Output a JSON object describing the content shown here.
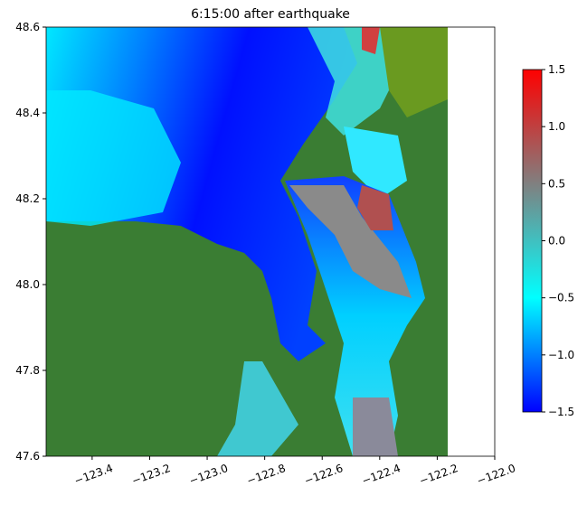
{
  "chart_data": {
    "type": "map",
    "title": "6:15:00 after earthquake",
    "xlim": [
      -123.56,
      -122.0
    ],
    "ylim": [
      47.6,
      48.6
    ],
    "xticks": [
      {
        "value": -123.4,
        "label": "−123.4"
      },
      {
        "value": -123.2,
        "label": "−123.2"
      },
      {
        "value": -123.0,
        "label": "−123.0"
      },
      {
        "value": -122.8,
        "label": "−122.8"
      },
      {
        "value": -122.6,
        "label": "−122.6"
      },
      {
        "value": -122.4,
        "label": "−122.4"
      },
      {
        "value": -122.2,
        "label": "−122.2"
      },
      {
        "value": -122.0,
        "label": "−122.0"
      }
    ],
    "yticks": [
      47.6,
      47.8,
      {
        "value": 48.0,
        "label": "48.0"
      },
      48.2,
      48.4,
      48.6
    ],
    "colorbar": {
      "clim": [
        -1.5,
        1.5
      ],
      "colors": [
        "#0000ff",
        "#00ffff",
        "#808080",
        "#ff0000"
      ],
      "ticks": [
        {
          "value": -1.5,
          "label": "−1.5"
        },
        {
          "value": -1.0,
          "label": "−1.0"
        },
        {
          "value": -0.5,
          "label": "−0.5"
        },
        {
          "value": 0.0,
          "label": "0.0"
        },
        0.5,
        {
          "value": 1.0,
          "label": "1.0"
        },
        1.5
      ]
    }
  }
}
